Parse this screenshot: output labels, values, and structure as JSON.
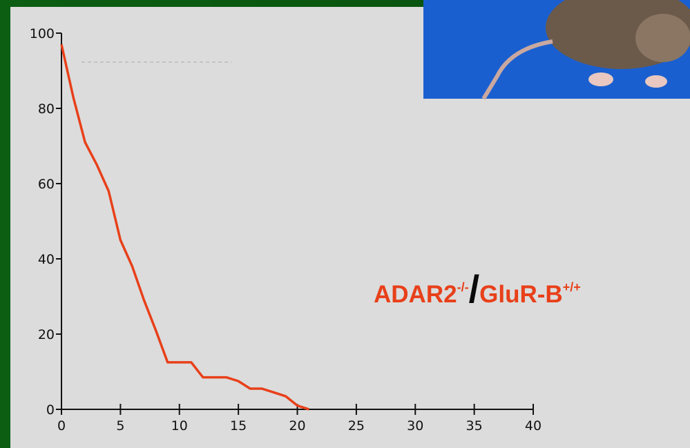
{
  "chart_data": {
    "type": "line",
    "x": [
      0,
      1,
      2,
      3,
      4,
      5,
      6,
      7,
      8,
      9,
      10,
      11,
      12,
      13,
      14,
      15,
      16,
      17,
      18,
      19,
      20,
      21
    ],
    "series": [
      {
        "color": "#e8401a",
        "values": [
          97,
          83,
          71,
          65,
          58,
          45,
          38,
          29,
          21,
          12.5,
          12.5,
          12.5,
          8.5,
          8.5,
          8.5,
          7.5,
          5.5,
          5.5,
          4.5,
          3.5,
          1,
          0
        ]
      }
    ],
    "xlim": [
      0,
      40
    ],
    "xticks": [
      0,
      5,
      10,
      15,
      20,
      25,
      30,
      35,
      40
    ],
    "ylim": [
      0,
      100
    ],
    "yticks": [
      0,
      20,
      40,
      60,
      80,
      100
    ],
    "annotation": {
      "gene1": "ADAR2",
      "sup1": "-/-",
      "slash": "/",
      "gene2": "GluR-B",
      "sup2": "+/+"
    }
  }
}
